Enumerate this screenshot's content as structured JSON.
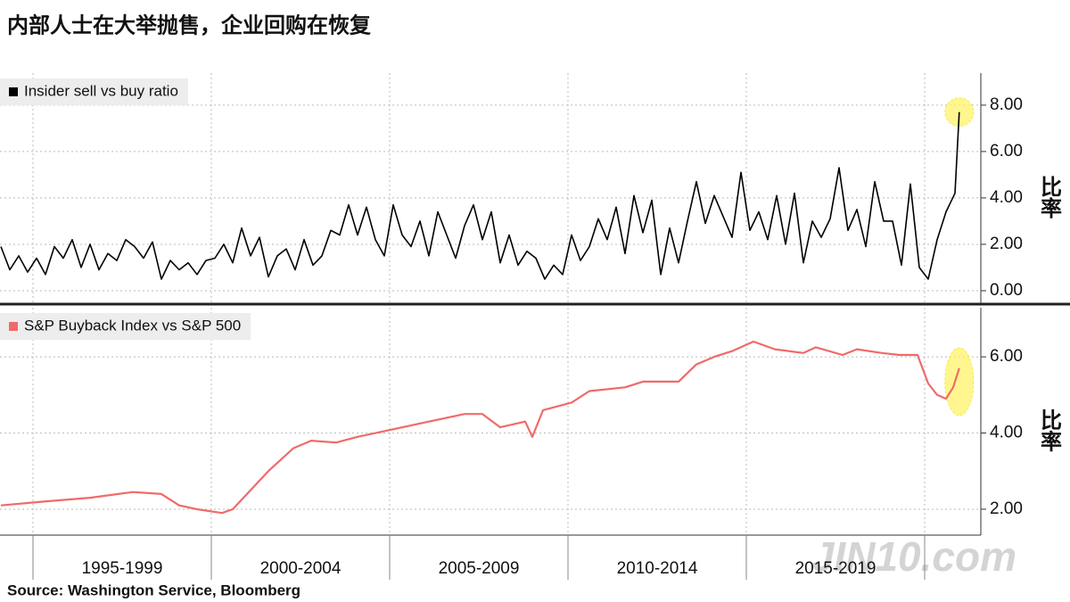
{
  "title": "内部人士在大举抛售，企业回购在恢复",
  "source": "Source: Washington Service, Bloomberg",
  "watermark": "JIN10.com",
  "chart_data": [
    {
      "type": "line",
      "y_label": "比率",
      "grid": true,
      "xlim": [
        1994.075,
        2021.575
      ],
      "ylim": [
        -0.54,
        9.38
      ],
      "yticks": [
        {
          "value": 0,
          "label": "0.00"
        },
        {
          "value": 2,
          "label": "2.00"
        },
        {
          "value": 4,
          "label": "4.00"
        },
        {
          "value": 6,
          "label": "6.00"
        },
        {
          "value": 8,
          "label": "8.00"
        }
      ],
      "x": [
        1994.1,
        1994.35,
        1994.6,
        1994.85,
        1995.1,
        1995.35,
        1995.6,
        1995.85,
        1996.1,
        1996.35,
        1996.6,
        1996.85,
        1997.1,
        1997.35,
        1997.6,
        1997.85,
        1998.1,
        1998.35,
        1998.6,
        1998.85,
        1999.1,
        1999.35,
        1999.6,
        1999.85,
        2000.1,
        2000.35,
        2000.6,
        2000.85,
        2001.1,
        2001.35,
        2001.6,
        2001.85,
        2002.1,
        2002.35,
        2002.6,
        2002.85,
        2003.1,
        2003.35,
        2003.6,
        2003.85,
        2004.1,
        2004.35,
        2004.6,
        2004.85,
        2005.1,
        2005.35,
        2005.6,
        2005.85,
        2006.1,
        2006.35,
        2006.6,
        2006.85,
        2007.1,
        2007.35,
        2007.6,
        2007.85,
        2008.1,
        2008.35,
        2008.6,
        2008.85,
        2009.1,
        2009.35,
        2009.6,
        2009.85,
        2010.1,
        2010.35,
        2010.6,
        2010.85,
        2011.1,
        2011.35,
        2011.6,
        2011.85,
        2012.1,
        2012.35,
        2012.6,
        2012.85,
        2013.1,
        2013.35,
        2013.6,
        2013.85,
        2014.1,
        2014.35,
        2014.6,
        2014.85,
        2015.1,
        2015.35,
        2015.6,
        2015.85,
        2016.1,
        2016.35,
        2016.6,
        2016.85,
        2017.1,
        2017.35,
        2017.6,
        2017.85,
        2018.1,
        2018.35,
        2018.6,
        2018.85,
        2019.1,
        2019.35,
        2019.6,
        2019.85,
        2020.1,
        2020.35,
        2020.6,
        2020.85,
        2020.97
      ],
      "series": [
        {
          "name": "Insider sell vs buy ratio",
          "color": "#000000",
          "values": [
            1.9,
            0.9,
            1.5,
            0.8,
            1.4,
            0.7,
            1.9,
            1.4,
            2.2,
            1.0,
            2.0,
            0.9,
            1.6,
            1.3,
            2.2,
            1.9,
            1.4,
            2.1,
            0.5,
            1.3,
            0.9,
            1.2,
            0.7,
            1.3,
            1.4,
            2.0,
            1.2,
            2.7,
            1.5,
            2.3,
            0.6,
            1.5,
            1.8,
            0.9,
            2.2,
            1.1,
            1.5,
            2.6,
            2.4,
            3.7,
            2.4,
            3.6,
            2.2,
            1.5,
            3.7,
            2.4,
            1.9,
            3.0,
            1.5,
            3.4,
            2.4,
            1.4,
            2.8,
            3.7,
            2.2,
            3.4,
            1.2,
            2.4,
            1.1,
            1.7,
            1.4,
            0.5,
            1.1,
            0.7,
            2.4,
            1.3,
            1.9,
            3.1,
            2.2,
            3.6,
            1.6,
            4.1,
            2.5,
            3.9,
            0.7,
            2.7,
            1.2,
            3.0,
            4.7,
            2.9,
            4.1,
            3.2,
            2.3,
            5.1,
            2.6,
            3.4,
            2.2,
            4.1,
            2.0,
            4.2,
            1.2,
            3.0,
            2.3,
            3.1,
            5.3,
            2.6,
            3.5,
            1.9,
            4.7,
            3.0,
            3.0,
            1.1,
            4.6,
            1.0,
            0.5,
            2.2,
            3.4,
            4.2,
            7.7
          ]
        }
      ]
    },
    {
      "type": "line",
      "y_label": "比率",
      "grid": true,
      "xlim": [
        1994.075,
        2021.575
      ],
      "ylim": [
        1.32,
        7.29
      ],
      "yticks": [
        {
          "value": 2,
          "label": "2.00"
        },
        {
          "value": 4,
          "label": "4.00"
        },
        {
          "value": 6,
          "label": "6.00"
        }
      ],
      "xticks": [
        {
          "value": 1995,
          "label": "1995-1999"
        },
        {
          "value": 2000,
          "label": "2000-2004"
        },
        {
          "value": 2005,
          "label": "2005-2009"
        },
        {
          "value": 2010,
          "label": "2010-2014"
        },
        {
          "value": 2015,
          "label": "2015-2019"
        },
        2020
      ],
      "x": [
        1994.1,
        1995.3,
        1996.6,
        1997.8,
        1998.6,
        1999.1,
        1999.6,
        2000.3,
        2000.6,
        2001.1,
        2001.6,
        2002.3,
        2002.8,
        2003.5,
        2004.1,
        2005.1,
        2006.1,
        2007.1,
        2007.6,
        2008.1,
        2008.8,
        2009.0,
        2009.3,
        2010.1,
        2010.6,
        2011.6,
        2012.1,
        2013.1,
        2013.6,
        2014.1,
        2014.6,
        2015.2,
        2015.8,
        2016.6,
        2016.95,
        2017.7,
        2018.1,
        2018.8,
        2019.3,
        2019.8,
        2020.1,
        2020.35,
        2020.6,
        2020.8,
        2020.97
      ],
      "series": [
        {
          "name": "S&P Buyback Index vs S&P 500",
          "color": "#f06a6a",
          "values": [
            2.1,
            2.2,
            2.3,
            2.45,
            2.4,
            2.1,
            2.0,
            1.9,
            2.0,
            2.5,
            3.0,
            3.6,
            3.8,
            3.75,
            3.9,
            4.1,
            4.3,
            4.5,
            4.5,
            4.15,
            4.3,
            3.9,
            4.6,
            4.8,
            5.1,
            5.2,
            5.35,
            5.35,
            5.8,
            6.0,
            6.15,
            6.4,
            6.2,
            6.1,
            6.25,
            6.05,
            6.2,
            6.1,
            6.05,
            6.05,
            5.3,
            5.0,
            4.9,
            5.2,
            5.7
          ]
        }
      ]
    }
  ]
}
